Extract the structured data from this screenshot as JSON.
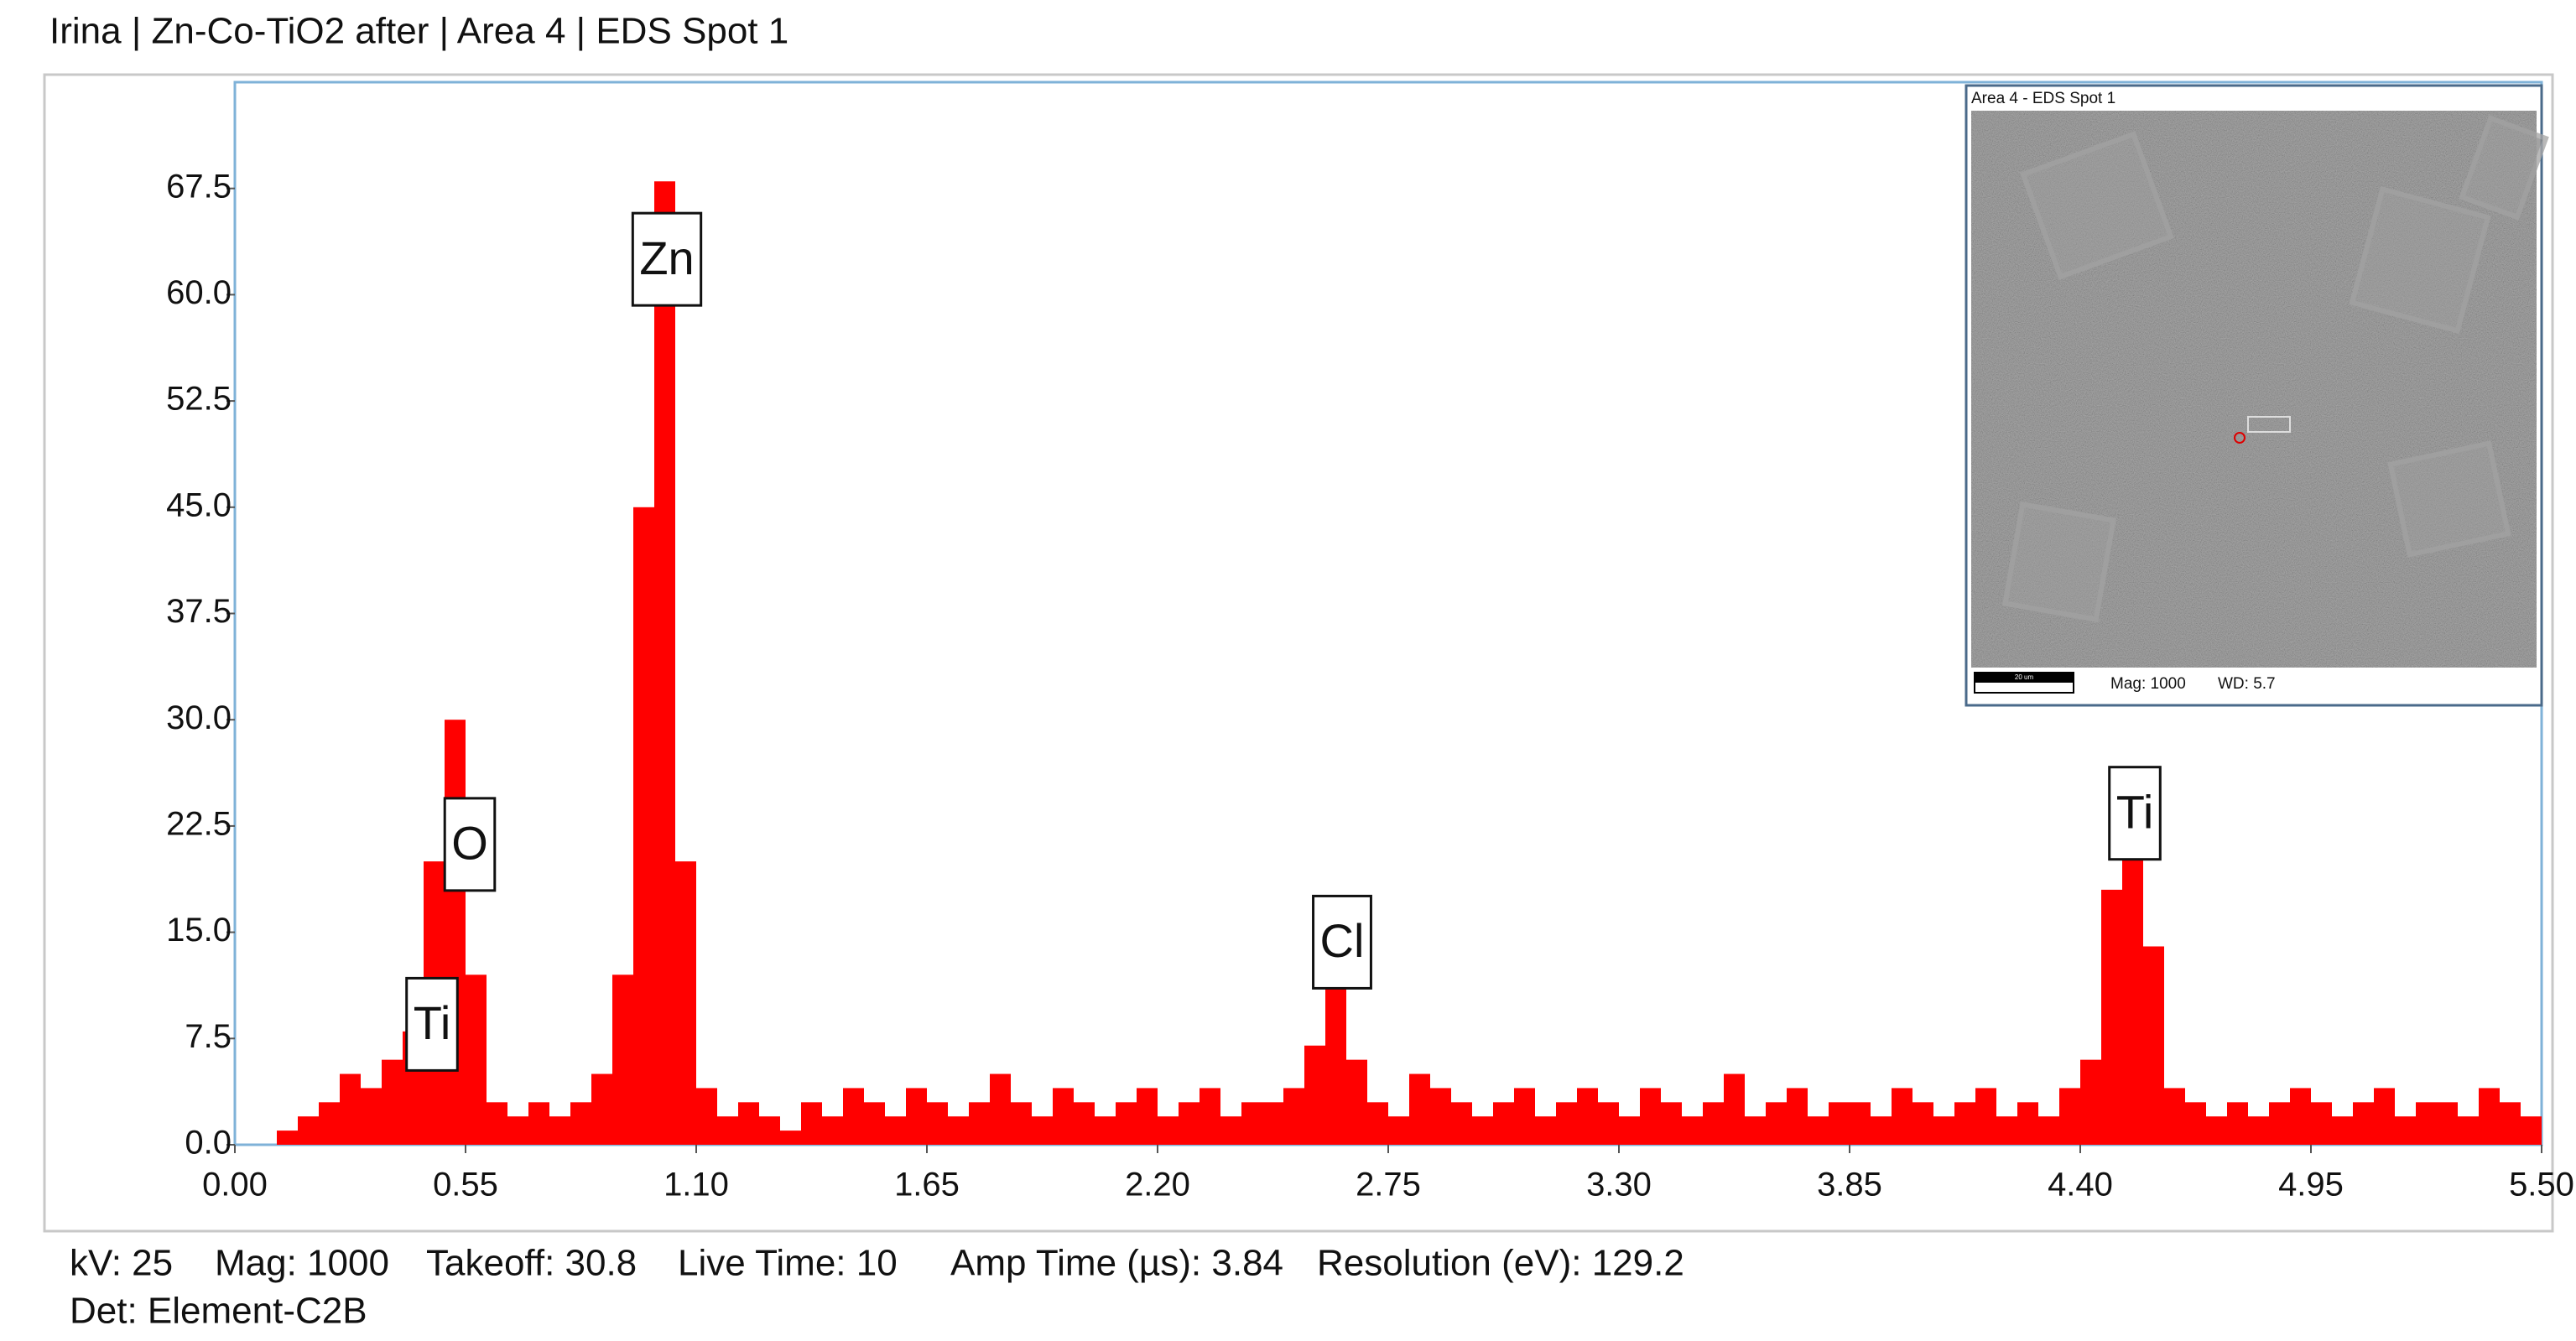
{
  "chart_data": {
    "type": "histogram",
    "title": "Irina | Zn-Co-TiO2 after | Area 4 | EDS Spot 1",
    "color": "#ff0000",
    "bins": [
      0,
      0.05,
      0.1,
      0.15,
      0.2,
      0.25,
      0.3,
      0.35,
      0.4,
      0.45,
      0.5,
      0.55,
      0.6,
      0.65,
      0.7,
      0.75,
      0.8,
      0.85,
      0.9,
      0.95,
      1,
      1.05,
      1.1,
      1.15,
      1.2,
      1.25,
      1.3,
      1.35,
      1.4,
      1.45,
      1.5,
      1.55,
      1.6,
      1.65,
      1.7,
      1.75,
      1.8,
      1.85,
      1.9,
      1.95,
      2,
      2.05,
      2.1,
      2.15,
      2.2,
      2.25,
      2.3,
      2.35,
      2.4,
      2.45,
      2.5,
      2.55,
      2.6,
      2.65,
      2.7,
      2.75,
      2.8,
      2.85,
      2.9,
      2.95,
      3,
      3.05,
      3.1,
      3.15,
      3.2,
      3.25,
      3.3,
      3.35,
      3.4,
      3.45,
      3.5,
      3.55,
      3.6,
      3.65,
      3.7,
      3.75,
      3.8,
      3.85,
      3.9,
      3.95,
      4,
      4.05,
      4.1,
      4.15,
      4.2,
      4.25,
      4.3,
      4.35,
      4.4,
      4.45,
      4.5,
      4.55,
      4.6,
      4.65,
      4.7,
      4.75,
      4.8,
      4.85,
      4.9,
      4.95,
      5,
      5.05,
      5.1,
      5.15,
      5.2,
      5.25,
      5.3,
      5.35,
      5.4,
      5.45,
      5.5
    ],
    "values": [
      0,
      0,
      1,
      2,
      3,
      5,
      4,
      6,
      8,
      20,
      30,
      12,
      3,
      2,
      3,
      2,
      3,
      5,
      12,
      45,
      68,
      20,
      4,
      2,
      3,
      2,
      1,
      3,
      2,
      4,
      3,
      2,
      4,
      3,
      2,
      3,
      5,
      3,
      2,
      4,
      3,
      2,
      3,
      4,
      2,
      3,
      4,
      2,
      3,
      3,
      4,
      7,
      12,
      6,
      3,
      2,
      5,
      4,
      3,
      2,
      3,
      4,
      2,
      3,
      4,
      3,
      2,
      4,
      3,
      2,
      3,
      5,
      2,
      3,
      4,
      2,
      3,
      3,
      2,
      4,
      3,
      2,
      3,
      4,
      2,
      3,
      2,
      4,
      6,
      18,
      26,
      14,
      4,
      3,
      2,
      3,
      2,
      3,
      4,
      3,
      2,
      3,
      4,
      2,
      3,
      3,
      2,
      4,
      3,
      2
    ],
    "xlim": [
      0,
      5.5
    ],
    "xticks": [
      {
        "value": 0,
        "label": "0.00"
      },
      0.55,
      {
        "value": 1.1,
        "label": "1.10"
      },
      1.65,
      {
        "value": 2.2,
        "label": "2.20"
      },
      2.75,
      {
        "value": 3.3,
        "label": "3.30"
      },
      3.85,
      {
        "value": 4.4,
        "label": "4.40"
      },
      4.95,
      {
        "value": 5.5,
        "label": "5.50"
      }
    ],
    "ylim": [
      0,
      75
    ],
    "yticks": [
      {
        "value": 0,
        "label": "0.0"
      },
      7.5,
      {
        "value": 15,
        "label": "15.0"
      },
      22.5,
      {
        "value": 30,
        "label": "30.0"
      },
      37.5,
      {
        "value": 45,
        "label": "45.0"
      },
      52.5,
      {
        "value": 60,
        "label": "60.0"
      },
      67.5
    ],
    "grid": false,
    "annotations": [
      {
        "text": "Zn",
        "x": 1.03,
        "y": 62.5
      },
      {
        "text": "O",
        "x": 0.56,
        "y": 21.2
      },
      {
        "text": "Ti",
        "x": 0.47,
        "y": 8.5
      },
      {
        "text": "Cl",
        "x": 2.64,
        "y": 14.3
      },
      {
        "text": "Ti",
        "x": 4.53,
        "y": 23.4
      }
    ]
  },
  "inset": {
    "title": "Area 4 - EDS Spot 1",
    "scale_bar": "20 um",
    "magnification": "Mag: 1000",
    "working_distance": "WD: 5.7"
  },
  "footer": [
    [
      "kV: 25",
      "Mag: 1000",
      "Takeoff: 30.8",
      "Live Time: 10",
      "Amp Time (µs): 3.84",
      "Resolution (eV): 129.2"
    ],
    [
      "Det: Element-C2B"
    ]
  ]
}
